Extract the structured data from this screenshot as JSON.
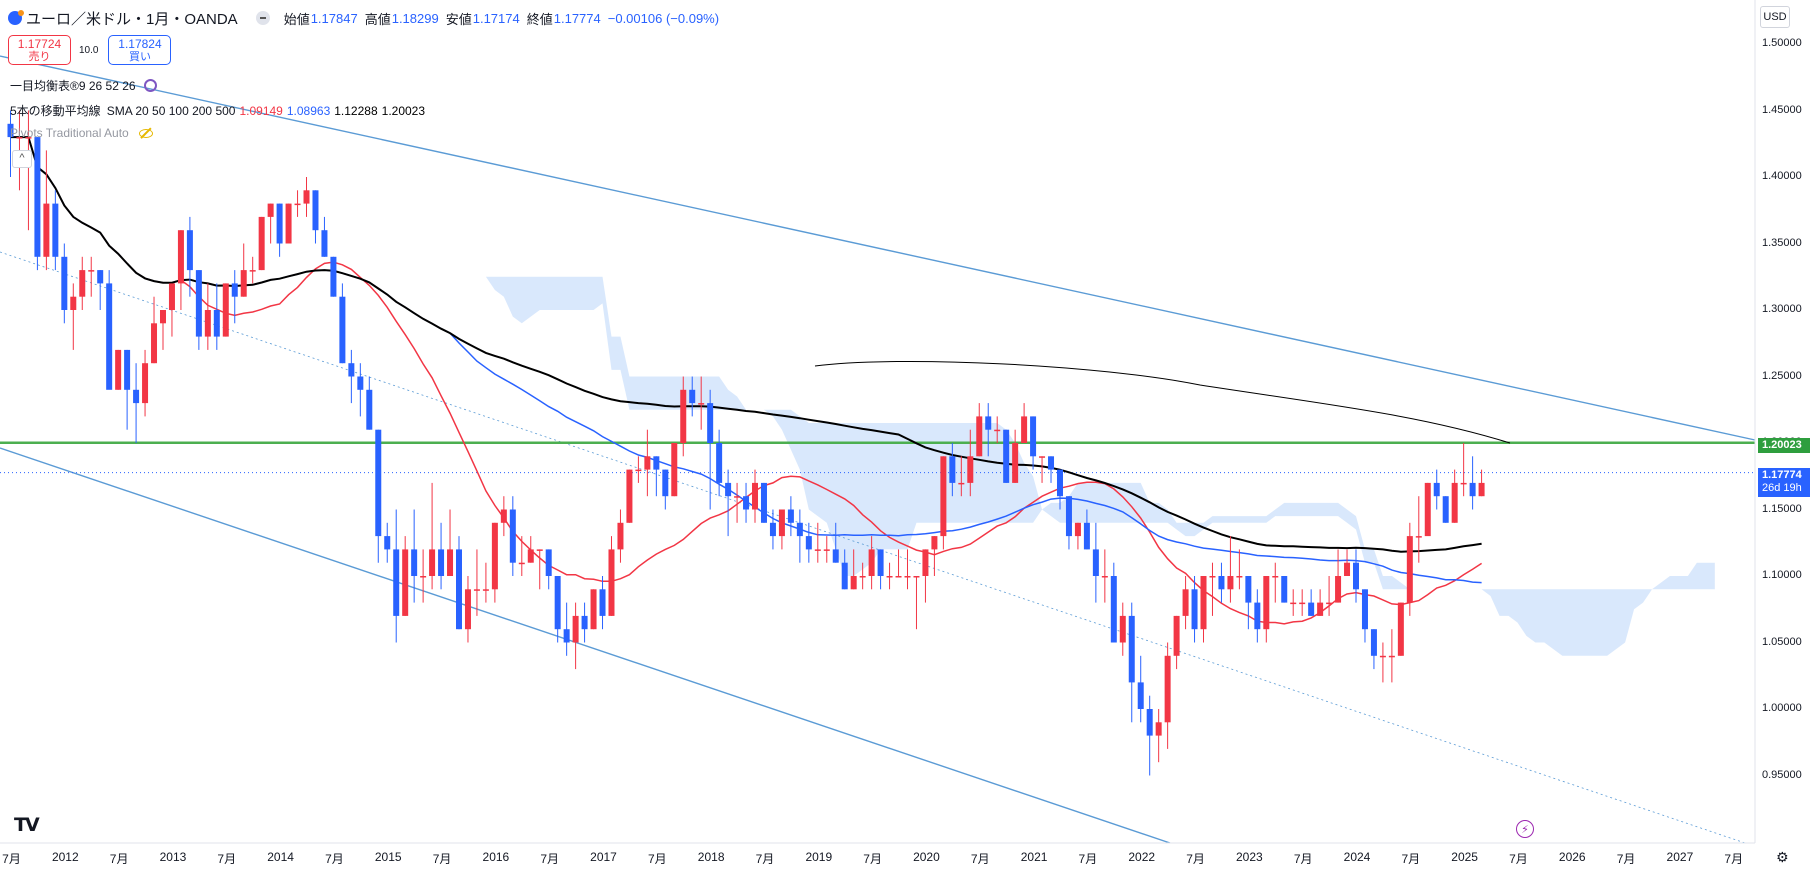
{
  "header": {
    "title": "ユーロ／米ドル・1月・OANDA",
    "open_label": "始値",
    "open": "1.17847",
    "high_label": "高値",
    "high": "1.18299",
    "low_label": "安値",
    "low": "1.17174",
    "close_label": "終値",
    "close": "1.17774",
    "change": "−0.00106 (−0.09%)"
  },
  "trade": {
    "sell_price": "1.17724",
    "sell_label": "売り",
    "spread": "10.0",
    "buy_price": "1.17824",
    "buy_label": "買い"
  },
  "legend": {
    "ichimoku_name": "一目均衡表®",
    "ichimoku_params": "9 26 52 26",
    "sma_name": "5本の移動平均線",
    "sma_params": "SMA 20 50 100 200 500",
    "sma_values": [
      "1.09149",
      "1.08963",
      "1.12288",
      "1.20023"
    ],
    "pivots_name": "Pivots Traditional Auto"
  },
  "price_axis": {
    "currency": "USD",
    "ticks": [
      "1.50000",
      "1.45000",
      "1.40000",
      "1.35000",
      "1.30000",
      "1.25000",
      "1.20000",
      "1.15000",
      "1.10000",
      "1.05000",
      "1.00000",
      "0.95000"
    ],
    "level_label": "1.20023",
    "last_price": "1.17774",
    "countdown": "26d 19h"
  },
  "time_axis": {
    "labels": [
      "7月",
      "2012",
      "7月",
      "2013",
      "7月",
      "2014",
      "7月",
      "2015",
      "7月",
      "2016",
      "7月",
      "2017",
      "7月",
      "2018",
      "7月",
      "2019",
      "7月",
      "2020",
      "7月",
      "2021",
      "7月",
      "2022",
      "7月",
      "2023",
      "7月",
      "2024",
      "7月",
      "2025",
      "7月",
      "2026",
      "7月",
      "2027",
      "7月"
    ]
  },
  "colors": {
    "up": "#f23645",
    "down": "#2962ff",
    "sma20": "#f23645",
    "sma50": "#2962ff",
    "sma100": "#000000",
    "level": "#4caf50",
    "channel": "#5b9bd5"
  },
  "chart_data": {
    "type": "candlestick",
    "symbol": "EUR/USD",
    "interval": "1M",
    "x_start": "2011-06",
    "ylim": [
      0.92,
      1.52
    ],
    "horizontal_level": 1.20023,
    "last_price": 1.17774,
    "candles_ohlc": [
      [
        1.44,
        1.45,
        1.4,
        1.43
      ],
      [
        1.43,
        1.45,
        1.39,
        1.43
      ],
      [
        1.43,
        1.45,
        1.36,
        1.43
      ],
      [
        1.43,
        1.43,
        1.33,
        1.34
      ],
      [
        1.34,
        1.42,
        1.33,
        1.38
      ],
      [
        1.38,
        1.39,
        1.33,
        1.34
      ],
      [
        1.34,
        1.35,
        1.29,
        1.3
      ],
      [
        1.3,
        1.32,
        1.27,
        1.31
      ],
      [
        1.31,
        1.34,
        1.3,
        1.33
      ],
      [
        1.33,
        1.34,
        1.31,
        1.33
      ],
      [
        1.33,
        1.33,
        1.3,
        1.32
      ],
      [
        1.32,
        1.33,
        1.26,
        1.24
      ],
      [
        1.24,
        1.27,
        1.24,
        1.27
      ],
      [
        1.27,
        1.27,
        1.21,
        1.24
      ],
      [
        1.24,
        1.26,
        1.2,
        1.23
      ],
      [
        1.23,
        1.27,
        1.22,
        1.26
      ],
      [
        1.26,
        1.31,
        1.26,
        1.29
      ],
      [
        1.29,
        1.3,
        1.27,
        1.3
      ],
      [
        1.3,
        1.32,
        1.28,
        1.32
      ],
      [
        1.32,
        1.36,
        1.3,
        1.36
      ],
      [
        1.36,
        1.37,
        1.31,
        1.33
      ],
      [
        1.33,
        1.33,
        1.27,
        1.28
      ],
      [
        1.28,
        1.32,
        1.27,
        1.3
      ],
      [
        1.3,
        1.32,
        1.27,
        1.28
      ],
      [
        1.28,
        1.32,
        1.28,
        1.32
      ],
      [
        1.32,
        1.33,
        1.29,
        1.31
      ],
      [
        1.31,
        1.35,
        1.31,
        1.33
      ],
      [
        1.33,
        1.34,
        1.32,
        1.33
      ],
      [
        1.33,
        1.37,
        1.33,
        1.37
      ],
      [
        1.37,
        1.38,
        1.35,
        1.38
      ],
      [
        1.38,
        1.38,
        1.34,
        1.35
      ],
      [
        1.35,
        1.38,
        1.35,
        1.38
      ],
      [
        1.38,
        1.39,
        1.37,
        1.38
      ],
      [
        1.38,
        1.4,
        1.37,
        1.39
      ],
      [
        1.39,
        1.39,
        1.35,
        1.36
      ],
      [
        1.36,
        1.37,
        1.34,
        1.34
      ],
      [
        1.34,
        1.34,
        1.31,
        1.31
      ],
      [
        1.31,
        1.32,
        1.26,
        1.26
      ],
      [
        1.26,
        1.27,
        1.23,
        1.25
      ],
      [
        1.25,
        1.26,
        1.22,
        1.24
      ],
      [
        1.24,
        1.25,
        1.21,
        1.21
      ],
      [
        1.21,
        1.21,
        1.11,
        1.13
      ],
      [
        1.13,
        1.14,
        1.11,
        1.12
      ],
      [
        1.12,
        1.15,
        1.05,
        1.07
      ],
      [
        1.07,
        1.13,
        1.07,
        1.12
      ],
      [
        1.12,
        1.15,
        1.08,
        1.1
      ],
      [
        1.1,
        1.12,
        1.08,
        1.1
      ],
      [
        1.1,
        1.17,
        1.09,
        1.12
      ],
      [
        1.12,
        1.14,
        1.09,
        1.1
      ],
      [
        1.1,
        1.15,
        1.1,
        1.12
      ],
      [
        1.12,
        1.13,
        1.06,
        1.06
      ],
      [
        1.06,
        1.1,
        1.05,
        1.09
      ],
      [
        1.09,
        1.12,
        1.07,
        1.09
      ],
      [
        1.09,
        1.11,
        1.08,
        1.09
      ],
      [
        1.09,
        1.14,
        1.08,
        1.14
      ],
      [
        1.14,
        1.16,
        1.13,
        1.15
      ],
      [
        1.15,
        1.16,
        1.1,
        1.11
      ],
      [
        1.11,
        1.13,
        1.1,
        1.11
      ],
      [
        1.11,
        1.13,
        1.11,
        1.12
      ],
      [
        1.12,
        1.12,
        1.09,
        1.12
      ],
      [
        1.12,
        1.12,
        1.09,
        1.1
      ],
      [
        1.1,
        1.1,
        1.05,
        1.06
      ],
      [
        1.06,
        1.08,
        1.04,
        1.05
      ],
      [
        1.05,
        1.08,
        1.03,
        1.07
      ],
      [
        1.07,
        1.08,
        1.05,
        1.06
      ],
      [
        1.06,
        1.09,
        1.06,
        1.09
      ],
      [
        1.09,
        1.1,
        1.06,
        1.07
      ],
      [
        1.07,
        1.13,
        1.07,
        1.12
      ],
      [
        1.12,
        1.15,
        1.11,
        1.14
      ],
      [
        1.14,
        1.18,
        1.14,
        1.18
      ],
      [
        1.18,
        1.19,
        1.17,
        1.18
      ],
      [
        1.18,
        1.21,
        1.16,
        1.19
      ],
      [
        1.19,
        1.19,
        1.16,
        1.18
      ],
      [
        1.18,
        1.18,
        1.15,
        1.16
      ],
      [
        1.16,
        1.2,
        1.16,
        1.2
      ],
      [
        1.2,
        1.25,
        1.19,
        1.24
      ],
      [
        1.24,
        1.25,
        1.22,
        1.23
      ],
      [
        1.23,
        1.25,
        1.21,
        1.23
      ],
      [
        1.23,
        1.24,
        1.15,
        1.2
      ],
      [
        1.2,
        1.21,
        1.16,
        1.17
      ],
      [
        1.17,
        1.18,
        1.13,
        1.16
      ],
      [
        1.16,
        1.17,
        1.14,
        1.16
      ],
      [
        1.16,
        1.17,
        1.14,
        1.15
      ],
      [
        1.15,
        1.18,
        1.14,
        1.17
      ],
      [
        1.17,
        1.17,
        1.14,
        1.14
      ],
      [
        1.14,
        1.15,
        1.12,
        1.13
      ],
      [
        1.13,
        1.15,
        1.12,
        1.15
      ],
      [
        1.15,
        1.16,
        1.13,
        1.14
      ],
      [
        1.14,
        1.15,
        1.11,
        1.13
      ],
      [
        1.13,
        1.14,
        1.11,
        1.12
      ],
      [
        1.12,
        1.14,
        1.11,
        1.12
      ],
      [
        1.12,
        1.13,
        1.11,
        1.12
      ],
      [
        1.12,
        1.14,
        1.11,
        1.11
      ],
      [
        1.11,
        1.12,
        1.09,
        1.09
      ],
      [
        1.09,
        1.12,
        1.09,
        1.1
      ],
      [
        1.1,
        1.11,
        1.09,
        1.1
      ],
      [
        1.1,
        1.13,
        1.09,
        1.12
      ],
      [
        1.12,
        1.12,
        1.09,
        1.1
      ],
      [
        1.1,
        1.11,
        1.09,
        1.1
      ],
      [
        1.1,
        1.12,
        1.1,
        1.1
      ],
      [
        1.1,
        1.12,
        1.09,
        1.1
      ],
      [
        1.1,
        1.1,
        1.06,
        1.1
      ],
      [
        1.1,
        1.12,
        1.08,
        1.12
      ],
      [
        1.12,
        1.13,
        1.1,
        1.13
      ],
      [
        1.13,
        1.19,
        1.12,
        1.19
      ],
      [
        1.19,
        1.2,
        1.16,
        1.17
      ],
      [
        1.17,
        1.19,
        1.16,
        1.17
      ],
      [
        1.17,
        1.21,
        1.16,
        1.19
      ],
      [
        1.19,
        1.23,
        1.19,
        1.22
      ],
      [
        1.22,
        1.23,
        1.19,
        1.21
      ],
      [
        1.21,
        1.22,
        1.2,
        1.21
      ],
      [
        1.21,
        1.21,
        1.17,
        1.17
      ],
      [
        1.17,
        1.21,
        1.17,
        1.2
      ],
      [
        1.2,
        1.23,
        1.2,
        1.22
      ],
      [
        1.22,
        1.22,
        1.18,
        1.19
      ],
      [
        1.19,
        1.19,
        1.17,
        1.19
      ],
      [
        1.19,
        1.19,
        1.17,
        1.18
      ],
      [
        1.18,
        1.18,
        1.15,
        1.16
      ],
      [
        1.16,
        1.16,
        1.12,
        1.13
      ],
      [
        1.13,
        1.14,
        1.12,
        1.14
      ],
      [
        1.14,
        1.15,
        1.12,
        1.12
      ],
      [
        1.12,
        1.14,
        1.08,
        1.1
      ],
      [
        1.1,
        1.12,
        1.08,
        1.1
      ],
      [
        1.1,
        1.11,
        1.05,
        1.05
      ],
      [
        1.05,
        1.08,
        1.04,
        1.07
      ],
      [
        1.07,
        1.08,
        0.99,
        1.02
      ],
      [
        1.02,
        1.04,
        0.99,
        1.0
      ],
      [
        1.0,
        1.01,
        0.95,
        0.98
      ],
      [
        0.98,
        1.0,
        0.96,
        0.99
      ],
      [
        0.99,
        1.05,
        0.97,
        1.04
      ],
      [
        1.04,
        1.07,
        1.03,
        1.07
      ],
      [
        1.07,
        1.1,
        1.06,
        1.09
      ],
      [
        1.09,
        1.1,
        1.05,
        1.06
      ],
      [
        1.06,
        1.1,
        1.05,
        1.1
      ],
      [
        1.1,
        1.11,
        1.07,
        1.1
      ],
      [
        1.1,
        1.11,
        1.08,
        1.09
      ],
      [
        1.09,
        1.13,
        1.08,
        1.1
      ],
      [
        1.1,
        1.12,
        1.09,
        1.1
      ],
      [
        1.1,
        1.1,
        1.06,
        1.08
      ],
      [
        1.08,
        1.09,
        1.05,
        1.06
      ],
      [
        1.06,
        1.1,
        1.05,
        1.1
      ],
      [
        1.1,
        1.11,
        1.08,
        1.1
      ],
      [
        1.1,
        1.1,
        1.08,
        1.08
      ],
      [
        1.08,
        1.09,
        1.07,
        1.08
      ],
      [
        1.08,
        1.09,
        1.07,
        1.08
      ],
      [
        1.08,
        1.09,
        1.07,
        1.07
      ],
      [
        1.07,
        1.09,
        1.07,
        1.08
      ],
      [
        1.08,
        1.1,
        1.07,
        1.08
      ],
      [
        1.08,
        1.12,
        1.08,
        1.1
      ],
      [
        1.1,
        1.12,
        1.1,
        1.11
      ],
      [
        1.11,
        1.12,
        1.08,
        1.09
      ],
      [
        1.09,
        1.09,
        1.05,
        1.06
      ],
      [
        1.06,
        1.06,
        1.03,
        1.04
      ],
      [
        1.04,
        1.05,
        1.02,
        1.04
      ],
      [
        1.04,
        1.06,
        1.02,
        1.04
      ],
      [
        1.04,
        1.08,
        1.04,
        1.08
      ],
      [
        1.08,
        1.14,
        1.07,
        1.13
      ],
      [
        1.13,
        1.16,
        1.11,
        1.13
      ],
      [
        1.13,
        1.17,
        1.14,
        1.17
      ],
      [
        1.17,
        1.18,
        1.15,
        1.16
      ],
      [
        1.16,
        1.16,
        1.14,
        1.14
      ],
      [
        1.14,
        1.18,
        1.14,
        1.17
      ],
      [
        1.17,
        1.2,
        1.16,
        1.17
      ],
      [
        1.17,
        1.19,
        1.15,
        1.16
      ],
      [
        1.16,
        1.18,
        1.16,
        1.17
      ]
    ],
    "note_values": "OHLC values per monthly candle, read approximately from the price axis"
  }
}
